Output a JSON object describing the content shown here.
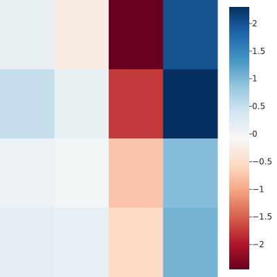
{
  "chart_data": {
    "type": "heatmap",
    "title": "",
    "xlabel": "",
    "ylabel": "",
    "rows": 4,
    "cols": 4,
    "values": [
      [
        0.1,
        -0.28,
        -2.45,
        2.0
      ],
      [
        0.5,
        0.1,
        -1.75,
        2.3
      ],
      [
        0.08,
        -0.01,
        -0.75,
        0.95
      ],
      [
        0.18,
        0.12,
        -0.55,
        1.05
      ]
    ],
    "colormap": "RdBu",
    "vmin": -2.45,
    "vmax": 2.3,
    "colorbar": {
      "ticks": [
        -2,
        -1.5,
        -1,
        -0.5,
        0,
        0.5,
        1,
        1.5,
        2
      ],
      "tick_labels": [
        "−2",
        "−1.5",
        "−1",
        "−0.5",
        "0",
        "0.5",
        "1",
        "1.5",
        "2"
      ]
    },
    "colors": {
      "cmap_stops": [
        "#67001f",
        "#b2182b",
        "#d6604d",
        "#f4a582",
        "#fddbc7",
        "#f7f7f7",
        "#d1e5f0",
        "#92c5de",
        "#4393c3",
        "#2166ac",
        "#053061"
      ]
    }
  }
}
